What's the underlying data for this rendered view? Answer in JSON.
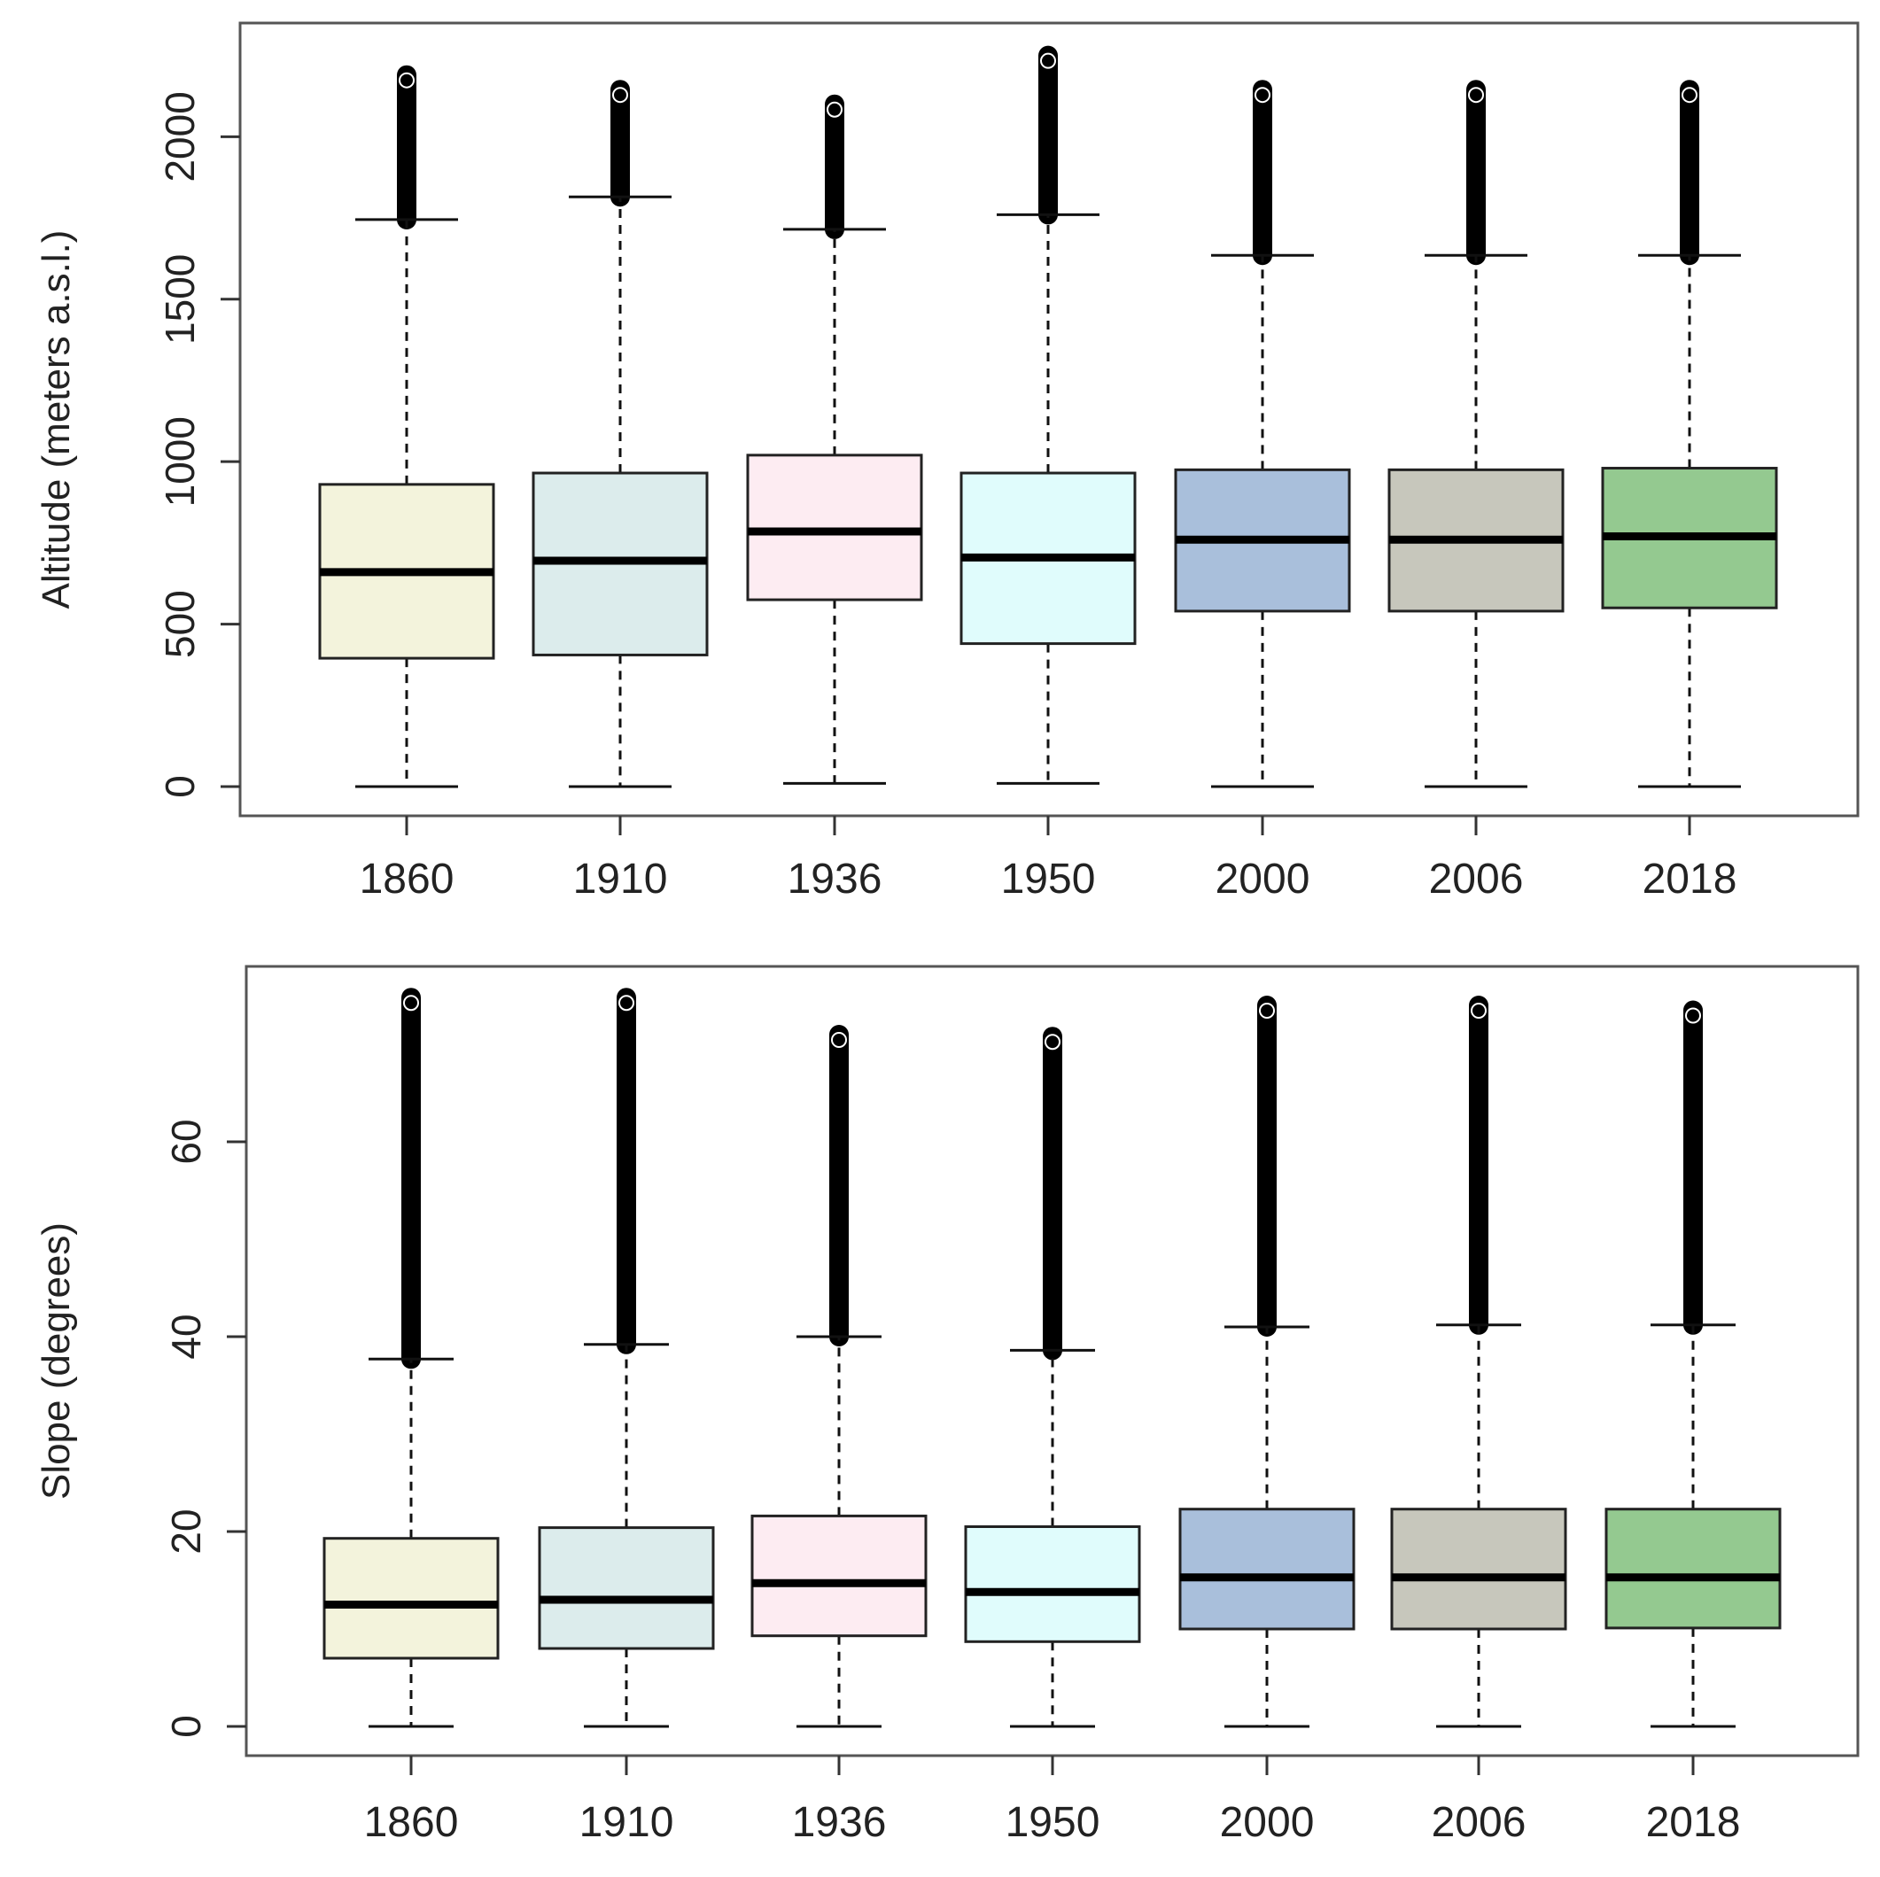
{
  "chart_data": [
    {
      "type": "boxplot",
      "title": "",
      "xlabel": "",
      "ylabel": "Altitude (meters a.s.l.)",
      "ylim": [
        -90,
        2350
      ],
      "yticks": [
        "0",
        "500",
        "1000",
        "1500",
        "2000"
      ],
      "ytick_values": [
        0,
        500,
        1000,
        1500,
        2000
      ],
      "categories": [
        "1860",
        "1910",
        "1936",
        "1950",
        "2000",
        "2006",
        "2018"
      ],
      "colors": [
        "#f3f3dc",
        "#dcecec",
        "#fdecf2",
        "#e0fcfc",
        "#a9bfdb",
        "#c7c7bc",
        "#94c990"
      ],
      "boxes": [
        {
          "year": "1860",
          "whisker_low": 0,
          "q1": 395,
          "median": 660,
          "q3": 930,
          "whisker_high": 1745,
          "outlier_max": 2190
        },
        {
          "year": "1910",
          "whisker_low": 0,
          "q1": 405,
          "median": 695,
          "q3": 965,
          "whisker_high": 1815,
          "outlier_max": 2145
        },
        {
          "year": "1936",
          "whisker_low": 10,
          "q1": 575,
          "median": 785,
          "q3": 1020,
          "whisker_high": 1715,
          "outlier_max": 2100
        },
        {
          "year": "1950",
          "whisker_low": 10,
          "q1": 440,
          "median": 705,
          "q3": 965,
          "whisker_high": 1760,
          "outlier_max": 2250
        },
        {
          "year": "2000",
          "whisker_low": 0,
          "q1": 540,
          "median": 760,
          "q3": 975,
          "whisker_high": 1635,
          "outlier_max": 2145
        },
        {
          "year": "2006",
          "whisker_low": 0,
          "q1": 540,
          "median": 760,
          "q3": 975,
          "whisker_high": 1635,
          "outlier_max": 2145
        },
        {
          "year": "2018",
          "whisker_low": 0,
          "q1": 550,
          "median": 770,
          "q3": 980,
          "whisker_high": 1635,
          "outlier_max": 2145
        }
      ]
    },
    {
      "type": "boxplot",
      "title": "",
      "xlabel": "",
      "ylabel": "Slope (degrees)",
      "ylim": [
        -3,
        78
      ],
      "yticks": [
        "0",
        "20",
        "40",
        "60"
      ],
      "ytick_values": [
        0,
        20,
        40,
        60
      ],
      "categories": [
        "1860",
        "1910",
        "1936",
        "1950",
        "2000",
        "2006",
        "2018"
      ],
      "colors": [
        "#f3f3dc",
        "#dcecec",
        "#fdecf2",
        "#e0fcfc",
        "#a9bfdb",
        "#c7c7bc",
        "#94c990"
      ],
      "boxes": [
        {
          "year": "1860",
          "whisker_low": 0,
          "q1": 7.0,
          "median": 12.5,
          "q3": 19.3,
          "whisker_high": 37.7,
          "outlier_max": 74.8
        },
        {
          "year": "1910",
          "whisker_low": 0,
          "q1": 8.0,
          "median": 13.0,
          "q3": 20.4,
          "whisker_high": 39.2,
          "outlier_max": 74.8
        },
        {
          "year": "1936",
          "whisker_low": 0,
          "q1": 9.3,
          "median": 14.7,
          "q3": 21.6,
          "whisker_high": 40.0,
          "outlier_max": 71.0
        },
        {
          "year": "1950",
          "whisker_low": 0,
          "q1": 8.7,
          "median": 13.8,
          "q3": 20.5,
          "whisker_high": 38.6,
          "outlier_max": 70.8
        },
        {
          "year": "2000",
          "whisker_low": 0,
          "q1": 10.0,
          "median": 15.3,
          "q3": 22.3,
          "whisker_high": 41.0,
          "outlier_max": 74.0
        },
        {
          "year": "2006",
          "whisker_low": 0,
          "q1": 10.0,
          "median": 15.3,
          "q3": 22.3,
          "whisker_high": 41.2,
          "outlier_max": 74.0
        },
        {
          "year": "2018",
          "whisker_low": 0,
          "q1": 10.1,
          "median": 15.3,
          "q3": 22.3,
          "whisker_high": 41.2,
          "outlier_max": 73.5
        }
      ]
    }
  ]
}
